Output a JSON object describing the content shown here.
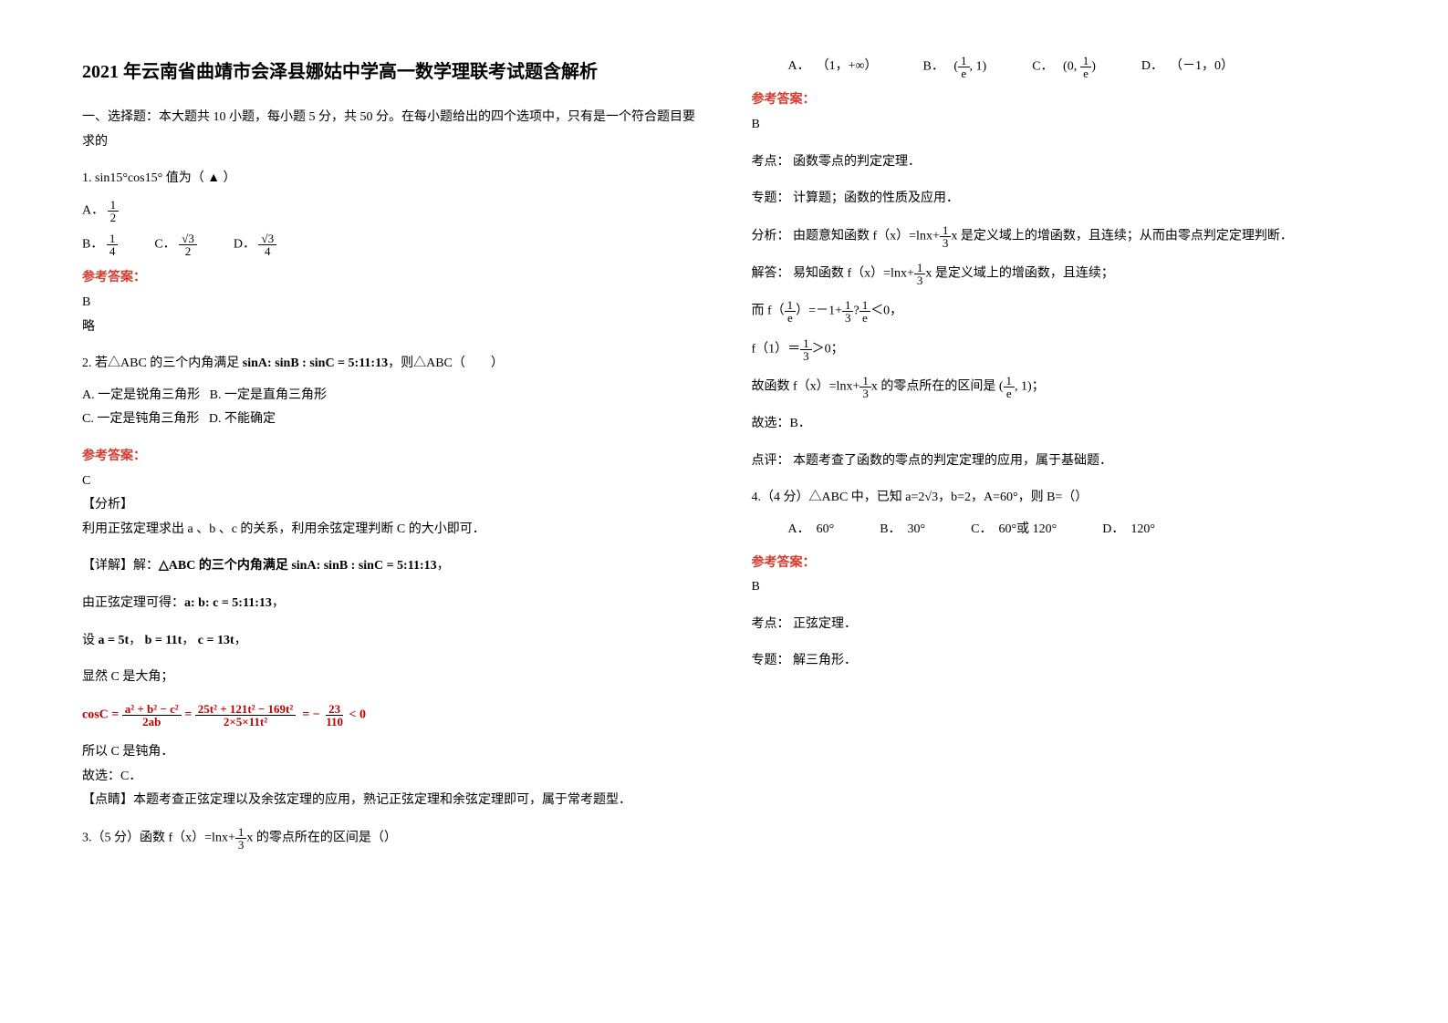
{
  "title": "2021 年云南省曲靖市会泽县娜姑中学高一数学理联考试题含解析",
  "section1_head": "一、选择题：本大题共 10 小题，每小题 5 分，共 50 分。在每小题给出的四个选项中，只有是一个符合题目要求的",
  "q1": {
    "stem_prefix": "1. ",
    "stem_math": "sin15°cos15°",
    "stem_suffix": " 值为（ ▲ ）",
    "optA_label": "A．",
    "optA_num": "1",
    "optA_den": "2",
    "optB_label": "B．",
    "optB_num": "1",
    "optB_den": "4",
    "optC_label": "C．",
    "optC_num": "√3",
    "optC_den": "2",
    "optD_label": "D．",
    "optD_num": "√3",
    "optD_den": "4",
    "ref_label": "参考答案：",
    "ref_ans": "B",
    "ref_note": "略"
  },
  "q2": {
    "stem": "2. 若△ABC 的三个内角满足 ",
    "stem_math": "sinA: sinB : sinC = 5:11:13",
    "stem_suffix": "，则△ABC（　　）",
    "optA": "A. 一定是锐角三角形",
    "optB": "B. 一定是直角三角形",
    "optC": "C. 一定是钝角三角形",
    "optD": "D. 不能确定",
    "ref_label": "参考答案：",
    "ref_ans": "C",
    "analysis_label": "【分析】",
    "analysis_text": "利用正弦定理求出 a 、b 、c 的关系，利用余弦定理判断 C 的大小即可．",
    "detail_label": "【详解】解：",
    "detail_1a": "△ABC 的三个内角满足 ",
    "detail_1b": "sinA: sinB : sinC = 5:11:13",
    "detail_1c": "，",
    "detail_2a": "由正弦定理可得：",
    "detail_2b": "a: b: c = 5:11:13",
    "detail_2c": "，",
    "detail_3a": "设 ",
    "detail_3b": "a = 5t",
    "detail_3c": "，",
    "detail_3d": "b = 11t",
    "detail_3e": "，",
    "detail_3f": "c = 13t",
    "detail_3g": "，",
    "detail_4": "显然 C 是大角；",
    "formula_lhs": "cosC =",
    "formula_f1n": "a² + b² − c²",
    "formula_f1d": "2ab",
    "formula_eq1": "=",
    "formula_f2n": "25t² + 121t² − 169t²",
    "formula_f2d": "2×5×11t²",
    "formula_eq2": "= −",
    "formula_f3n": "23",
    "formula_f3d": "110",
    "formula_tail": "< 0",
    "detail_5": "所以 C 是钝角．",
    "detail_6": "故选：C．",
    "comment_label": "【点睛】",
    "comment_text": "本题考查正弦定理以及余弦定理的应用，熟记正弦定理和余弦定理即可，属于常考题型．"
  },
  "q3": {
    "stem_prefix": "3.（5 分）函数 f（x）=lnx+",
    "stem_num": "1",
    "stem_den": "3",
    "stem_suffix": "x 的零点所在的区间是（）",
    "optA_label": "A．",
    "optA_text": "（1，+∞）",
    "optB_label": "B．",
    "optB_num": "1",
    "optB_den": "e",
    "optB_pre": "(",
    "optB_mid": ", 1)",
    "optC_label": "C．",
    "optC_pre": "(0, ",
    "optC_num": "1",
    "optC_den": "e",
    "optC_post": ")",
    "optD_label": "D．",
    "optD_text": "（－1，0）",
    "ref_label": "参考答案：",
    "ref_ans": "B",
    "kd_label": "考点：",
    "kd_text": "函数零点的判定定理．",
    "zt_label": "专题：",
    "zt_text": "计算题；函数的性质及应用．",
    "fx_label": "分析：",
    "fx_a": "由题意知函数 f（x）=lnx+",
    "fx_num": "1",
    "fx_den": "3",
    "fx_b": "x 是定义域上的增函数，且连续；从而由零点判定定理判断．",
    "jd_label": "解答：",
    "jd_a": "易知函数 f（x）=lnx+",
    "jd_num": "1",
    "jd_den": "3",
    "jd_b": "x 是定义域上的增函数，且连续；",
    "jd2_a": "而 f（",
    "jd2_n1": "1",
    "jd2_d1": "e",
    "jd2_b": "）=－1+",
    "jd2_n2": "1",
    "jd2_d2": "3",
    "jd2_c": "?",
    "jd2_n3": "1",
    "jd2_d3": "e",
    "jd2_d": "＜0，",
    "jd3_a": "f（1）＝",
    "jd3_n": "1",
    "jd3_d": "3",
    "jd3_b": "＞0；",
    "jd4_a": "故函数 f（x）=lnx+",
    "jd4_n": "1",
    "jd4_d": "3",
    "jd4_b": "x 的零点所在的区间是 ",
    "jd4_pre": "(",
    "jd4_n2": "1",
    "jd4_d2": "e",
    "jd4_post": ", 1)",
    "jd4_c": "；",
    "jd5": "故选：B．",
    "dp_label": "点评：",
    "dp_text": "本题考查了函数的零点的判定定理的应用，属于基础题．"
  },
  "q4": {
    "stem": "4.（4 分）△ABC 中，已知 a=2√3，b=2，A=60°，则 B=（）",
    "optA": "A．　60°",
    "optB": "B．　30°",
    "optC": "C．　60°或 120°",
    "optD": "D．　120°",
    "ref_label": "参考答案：",
    "ref_ans": "B",
    "kd_label": "考点：",
    "kd_text": "正弦定理．",
    "zt_label": "专题：",
    "zt_text": "解三角形．"
  }
}
